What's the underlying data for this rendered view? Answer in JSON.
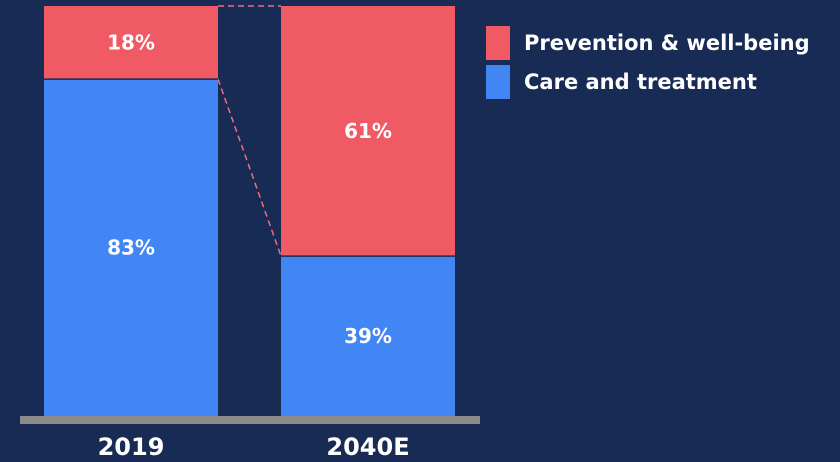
{
  "chart_data": {
    "type": "bar",
    "stacked": true,
    "categories": [
      "2019",
      "2040E"
    ],
    "series": [
      {
        "name": "Care and treatment",
        "values": [
          83,
          39
        ],
        "labels": [
          "83%",
          "39%"
        ],
        "color": "#4285f4"
      },
      {
        "name": "Prevention & well-being",
        "values": [
          18,
          61
        ],
        "labels": [
          "18%",
          "61%"
        ],
        "color": "#ef5a65"
      }
    ],
    "ylim": [
      0,
      100
    ],
    "grid": false,
    "legend_position": "top-right",
    "connector_lines": "dashed",
    "colors": {
      "background": "#172b54",
      "baseline": "#8a8a8a",
      "connector": "#ef6f7a"
    }
  }
}
